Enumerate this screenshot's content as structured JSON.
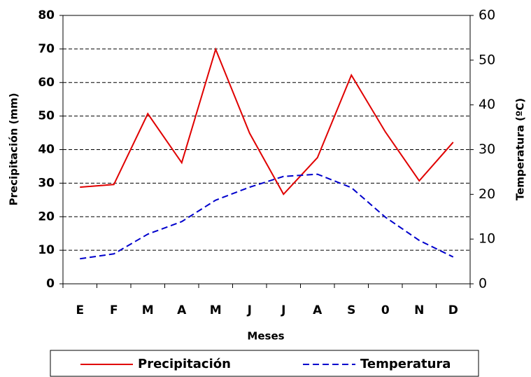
{
  "chart_data": {
    "type": "line",
    "x_label": "Meses",
    "y_label": "Precipitación (mm)",
    "y2_label": "Temperatura (ºC)",
    "categories": [
      "E",
      "F",
      "M",
      "A",
      "M",
      "J",
      "J",
      "A",
      "S",
      "0",
      "N",
      "D"
    ],
    "series": [
      {
        "name": "Precipitación",
        "color": "#e00000",
        "axis": "y",
        "dashed": false,
        "values": [
          28.8,
          29.6,
          50.7,
          36.1,
          69.9,
          44.9,
          26.7,
          37.6,
          62.2,
          45.3,
          30.7,
          42.2
        ]
      },
      {
        "name": "Temperatura",
        "color": "#0000cc",
        "axis": "y2",
        "dashed": true,
        "values": [
          5.6,
          6.7,
          11.1,
          13.9,
          18.7,
          21.6,
          24.0,
          24.5,
          21.5,
          14.9,
          9.7,
          6.0
        ]
      }
    ],
    "ylim": [
      0,
      80
    ],
    "yticks": [
      0,
      10,
      20,
      30,
      40,
      50,
      60,
      70,
      80
    ],
    "y2lim": [
      0,
      60
    ],
    "y2ticks": [
      0,
      10,
      20,
      30,
      40,
      50,
      60
    ],
    "grid": true,
    "legend": "bottom"
  }
}
